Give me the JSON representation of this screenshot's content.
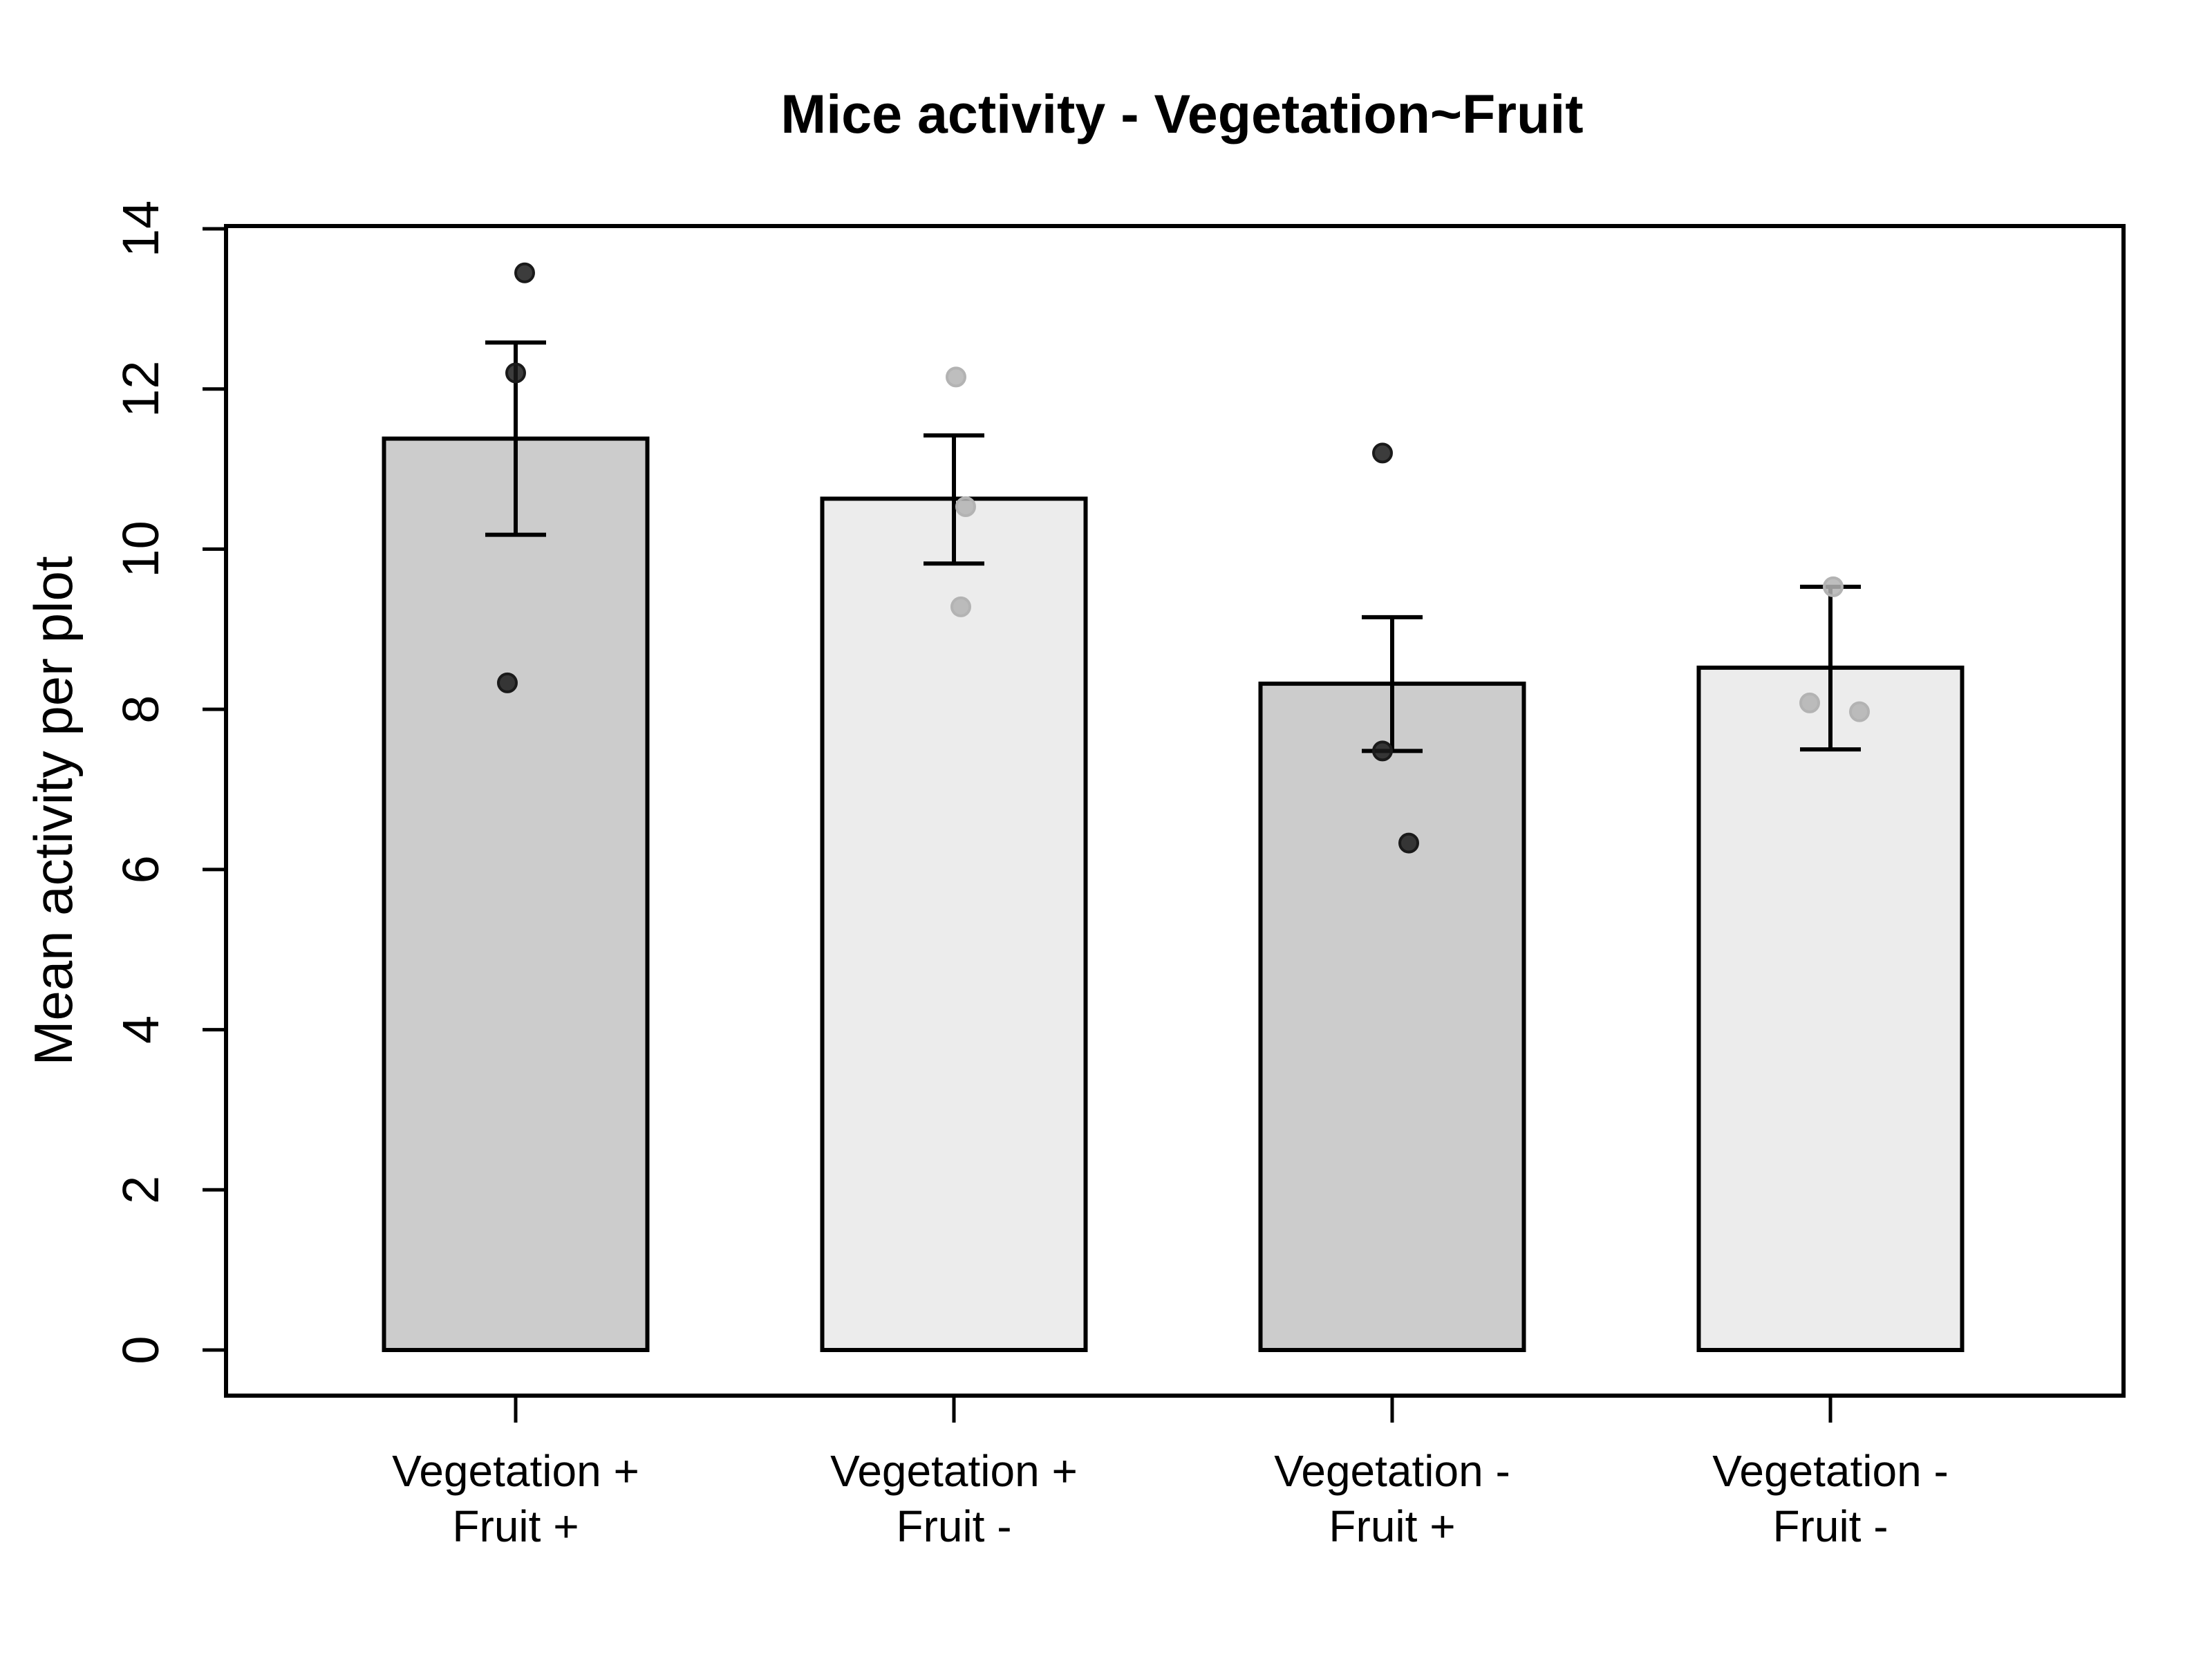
{
  "chart_data": {
    "type": "bar",
    "title": "Mice activity - Vegetation~Fruit",
    "xlabel": "",
    "ylabel": "Mean activity per plot",
    "ylim": [
      0,
      14
    ],
    "yticks": [
      "0",
      "2",
      "4",
      "6",
      "8",
      "10",
      "12",
      "14"
    ],
    "grid": false,
    "legend": "none",
    "categories": [
      [
        "Vegetation +",
        "Fruit +"
      ],
      [
        "Vegetation +",
        "Fruit -"
      ],
      [
        "Vegetation -",
        "Fruit +"
      ],
      [
        "Vegetation -",
        "Fruit -"
      ]
    ],
    "values": [
      11.38,
      10.63,
      8.32,
      8.52
    ],
    "error_bars": [
      [
        10.18,
        12.58
      ],
      [
        9.82,
        11.42
      ],
      [
        7.48,
        9.15
      ],
      [
        7.5,
        9.53
      ]
    ],
    "points": [
      [
        13.45,
        12.2,
        8.33
      ],
      [
        12.15,
        10.53,
        9.28
      ],
      [
        11.2,
        7.48,
        6.33
      ],
      [
        9.53,
        8.08,
        7.97
      ]
    ],
    "colors": {
      "bars": [
        "#cccccc",
        "#ececec",
        "#cccccc",
        "#ececec"
      ],
      "points": [
        "#1a1a1a",
        "#b3b3b3",
        "#1a1a1a",
        "#b3b3b3"
      ],
      "outline": "#000000"
    }
  }
}
